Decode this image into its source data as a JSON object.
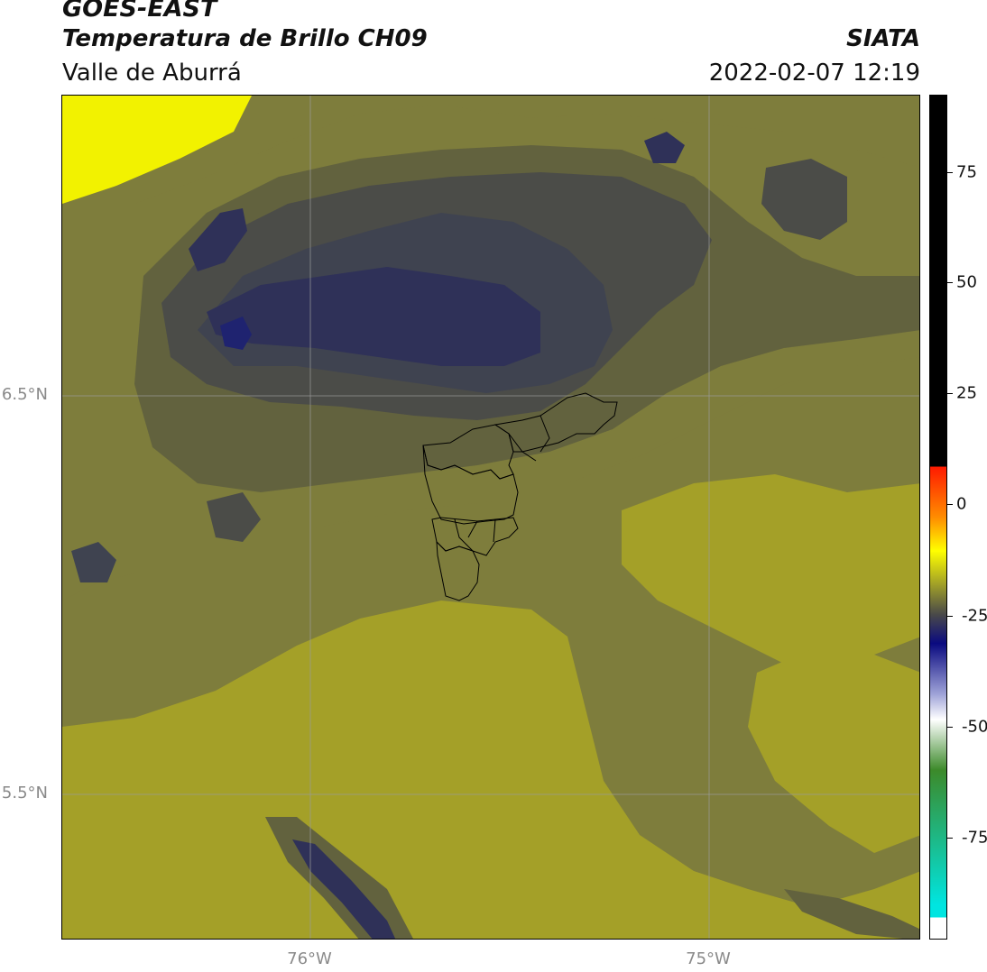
{
  "header": {
    "satellite": "GOES-EAST",
    "product": "Temperatura de Brillo CH09",
    "region": "Valle de Aburrá",
    "org": "SIATA",
    "datetime": "2022-02-07 12:19"
  },
  "axes": {
    "lat_labels": [
      "6.5°N",
      "5.5°N"
    ],
    "lon_labels": [
      "76°W",
      "75°W"
    ]
  },
  "colorbar": {
    "ticks": [
      "75",
      "50",
      "25",
      "0",
      "-25",
      "-50",
      "-75"
    ],
    "colors": {
      "black": "#000000",
      "red": "#ff1a00",
      "orange": "#ff8c00",
      "yellow": "#ffff00",
      "olive": "#a09f28",
      "dark_gray": "#4a4a48",
      "navy": "#0a0a80",
      "light_blue": "#9fa3d8",
      "white": "#ffffff",
      "green": "#3c8a2a",
      "cyan": "#00e5e0"
    }
  },
  "map_colors": {
    "bright_yellow": "#f2f200",
    "yellow_olive": "#a4a028",
    "mid_olive": "#7e7d3c",
    "dark_olive": "#62623e",
    "gray": "#4b4c48",
    "slate": "#3f4350",
    "dark_slate": "#2f3158",
    "navy": "#1f2370",
    "grid": "#9a9a9a",
    "boundary": "#000000"
  }
}
